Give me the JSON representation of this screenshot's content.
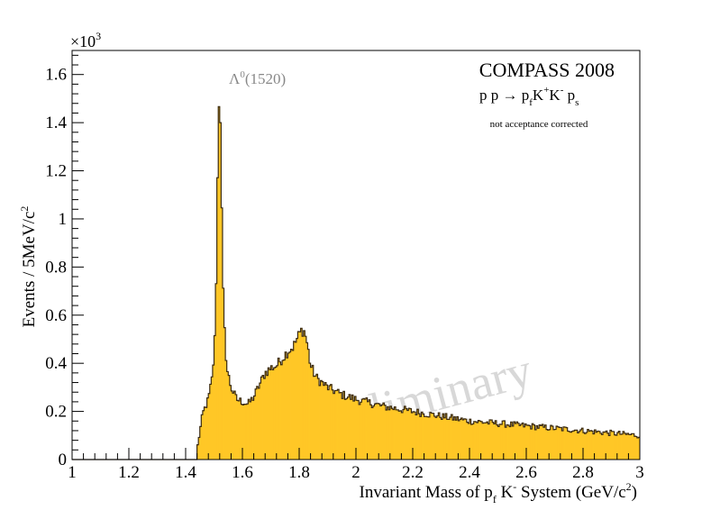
{
  "chart_data": {
    "type": "bar",
    "subtype": "histogram",
    "bin_width": 0.005,
    "xlim": [
      1.0,
      3.0
    ],
    "ylim": [
      0,
      1.7
    ],
    "y_multiplier_label": "×10",
    "y_multiplier_exponent": "3",
    "x_ticks": [
      {
        "value": 1.0,
        "label": "1"
      },
      {
        "value": 1.2,
        "label": "1.2"
      },
      {
        "value": 1.4,
        "label": "1.4"
      },
      {
        "value": 1.6,
        "label": "1.6"
      },
      {
        "value": 1.8,
        "label": "1.8"
      },
      {
        "value": 2.0,
        "label": "2"
      },
      {
        "value": 2.2,
        "label": "2.2"
      },
      {
        "value": 2.4,
        "label": "2.4"
      },
      {
        "value": 2.6,
        "label": "2.6"
      },
      {
        "value": 2.8,
        "label": "2.8"
      },
      {
        "value": 3.0,
        "label": "3"
      }
    ],
    "y_ticks": [
      {
        "value": 0,
        "label": "0"
      },
      {
        "value": 0.2,
        "label": "0.2"
      },
      {
        "value": 0.4,
        "label": "0.4"
      },
      {
        "value": 0.6,
        "label": "0.6"
      },
      {
        "value": 0.8,
        "label": "0.8"
      },
      {
        "value": 1.0,
        "label": "1"
      },
      {
        "value": 1.2,
        "label": "1.2"
      },
      {
        "value": 1.4,
        "label": "1.4"
      },
      {
        "value": 1.6,
        "label": "1.6"
      }
    ],
    "xlabel": "Invariant Mass of p_f K^- System (GeV/c^2)",
    "ylabel": "Events / 5MeV/c^2",
    "title": "COMPASS 2008",
    "subtitle": "p p → p_f K^+ K^- p_s",
    "note": "not acceptance corrected",
    "peak_label": "Λ^0(1520)",
    "watermark": "preliminary",
    "fill_color": "#ffc726",
    "line_color": "#3a2a10",
    "x": [
      1.44,
      1.46,
      1.48,
      1.495,
      1.505,
      1.51,
      1.515,
      1.52,
      1.525,
      1.53,
      1.535,
      1.545,
      1.56,
      1.58,
      1.6,
      1.62,
      1.64,
      1.66,
      1.68,
      1.7,
      1.72,
      1.74,
      1.76,
      1.78,
      1.8,
      1.81,
      1.82,
      1.83,
      1.84,
      1.86,
      1.88,
      1.9,
      1.95,
      2.0,
      2.1,
      2.2,
      2.3,
      2.4,
      2.5,
      2.6,
      2.7,
      2.8,
      2.9,
      3.0
    ],
    "y": [
      0.04,
      0.19,
      0.25,
      0.35,
      0.55,
      0.95,
      1.38,
      1.6,
      1.25,
      0.8,
      0.58,
      0.38,
      0.3,
      0.25,
      0.24,
      0.23,
      0.26,
      0.31,
      0.36,
      0.38,
      0.39,
      0.42,
      0.45,
      0.47,
      0.52,
      0.54,
      0.53,
      0.47,
      0.39,
      0.34,
      0.32,
      0.3,
      0.27,
      0.25,
      0.22,
      0.2,
      0.18,
      0.16,
      0.15,
      0.14,
      0.13,
      0.12,
      0.11,
      0.1
    ],
    "grid": false,
    "legend": "none"
  }
}
